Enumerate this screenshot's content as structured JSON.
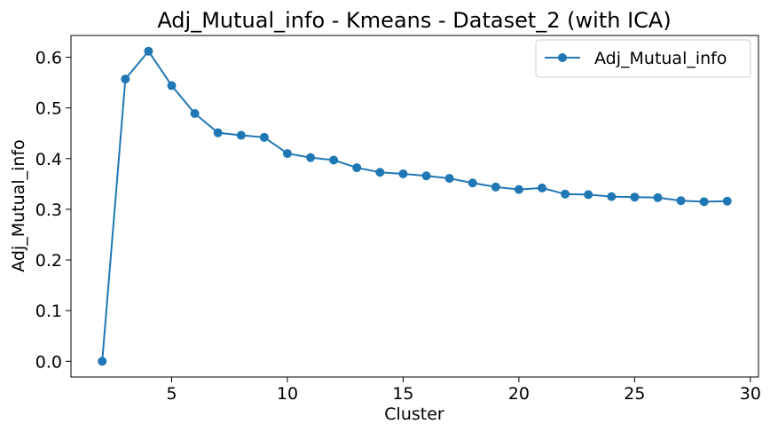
{
  "chart_data": {
    "type": "line",
    "title": "Adj_Mutual_info - Kmeans - Dataset_2 (with ICA)",
    "xlabel": "Cluster",
    "ylabel": "Adj_Mutual_info",
    "xlim": [
      0.65,
      30.35
    ],
    "ylim": [
      -0.031,
      0.643
    ],
    "xticks": [
      5,
      10,
      15,
      20,
      25,
      30
    ],
    "yticks": [
      0.0,
      0.1,
      0.2,
      0.3,
      0.4,
      0.5,
      0.6
    ],
    "ytick_labels": [
      "0.0",
      "0.1",
      "0.2",
      "0.3",
      "0.4",
      "0.5",
      "0.6"
    ],
    "grid": false,
    "legend_position": "top-right",
    "series": [
      {
        "name": "Adj_Mutual_info",
        "color": "#1f77b4",
        "marker": "circle",
        "x": [
          2,
          3,
          4,
          5,
          6,
          7,
          8,
          9,
          10,
          11,
          12,
          13,
          14,
          15,
          16,
          17,
          18,
          19,
          20,
          21,
          22,
          23,
          24,
          25,
          26,
          27,
          28,
          29
        ],
        "y": [
          0.0,
          0.557,
          0.612,
          0.544,
          0.489,
          0.451,
          0.446,
          0.442,
          0.41,
          0.402,
          0.397,
          0.382,
          0.373,
          0.37,
          0.366,
          0.361,
          0.352,
          0.344,
          0.339,
          0.342,
          0.33,
          0.329,
          0.325,
          0.324,
          0.323,
          0.317,
          0.315,
          0.316
        ]
      }
    ]
  }
}
